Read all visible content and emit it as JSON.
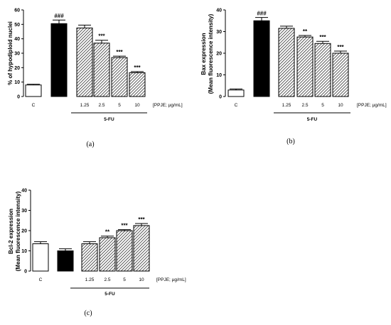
{
  "chart_data": [
    {
      "type": "bar",
      "panel_label": "(a)",
      "ylabel": "% of hypodiploid nuclei",
      "ylim": [
        0,
        60
      ],
      "yticks": [
        "0",
        "10",
        "20",
        "30",
        "40",
        "50",
        "60"
      ],
      "categories": [
        "C",
        "",
        "1.25",
        "2.5",
        "5",
        "10"
      ],
      "values": [
        8,
        50.5,
        47.5,
        37,
        27,
        16.5
      ],
      "errors": [
        0.5,
        2.5,
        2,
        2,
        1,
        0.8
      ],
      "fills": [
        "white",
        "black",
        "hatch",
        "hatch",
        "hatch",
        "hatch"
      ],
      "annotations": [
        "",
        "###",
        "",
        "***",
        "***",
        "***"
      ],
      "unit_label": "[PPJE; µg/mL]",
      "group_label": "5-FU"
    },
    {
      "type": "bar",
      "panel_label": "(b)",
      "ylabel": "Bax expression\n(Mean fluorescence intensity)",
      "ylim": [
        0,
        40
      ],
      "yticks": [
        "0",
        "10",
        "20",
        "30",
        "40"
      ],
      "categories": [
        "C",
        "",
        "1.25",
        "2.5",
        "5",
        "10"
      ],
      "values": [
        3,
        35,
        31.5,
        27.5,
        24.5,
        20
      ],
      "errors": [
        0.5,
        1.5,
        1,
        0.7,
        1,
        1
      ],
      "fills": [
        "white",
        "black",
        "hatch",
        "hatch",
        "hatch",
        "hatch"
      ],
      "annotations": [
        "",
        "###",
        "",
        "**",
        "***",
        "***"
      ],
      "unit_label": "[PPJE; µg/mL]",
      "group_label": "5-FU"
    },
    {
      "type": "bar",
      "panel_label": "(c)",
      "ylabel": "Bcl-2 expression\n(Mean fluorescence intensity)",
      "ylim": [
        0,
        40
      ],
      "yticks": [
        "0",
        "10",
        "20",
        "30",
        "40"
      ],
      "categories": [
        "C",
        "",
        "1.25",
        "2.5",
        "5",
        "10"
      ],
      "values": [
        13.5,
        10,
        13.5,
        16.5,
        20,
        22.5
      ],
      "errors": [
        1,
        1,
        1,
        0.8,
        0.5,
        1
      ],
      "fills": [
        "white",
        "black",
        "hatch",
        "hatch",
        "hatch",
        "hatch"
      ],
      "annotations": [
        "",
        "",
        "",
        "**",
        "***",
        "***"
      ],
      "unit_label": "[PPJE; µg/mL]",
      "group_label": "5-FU"
    }
  ]
}
